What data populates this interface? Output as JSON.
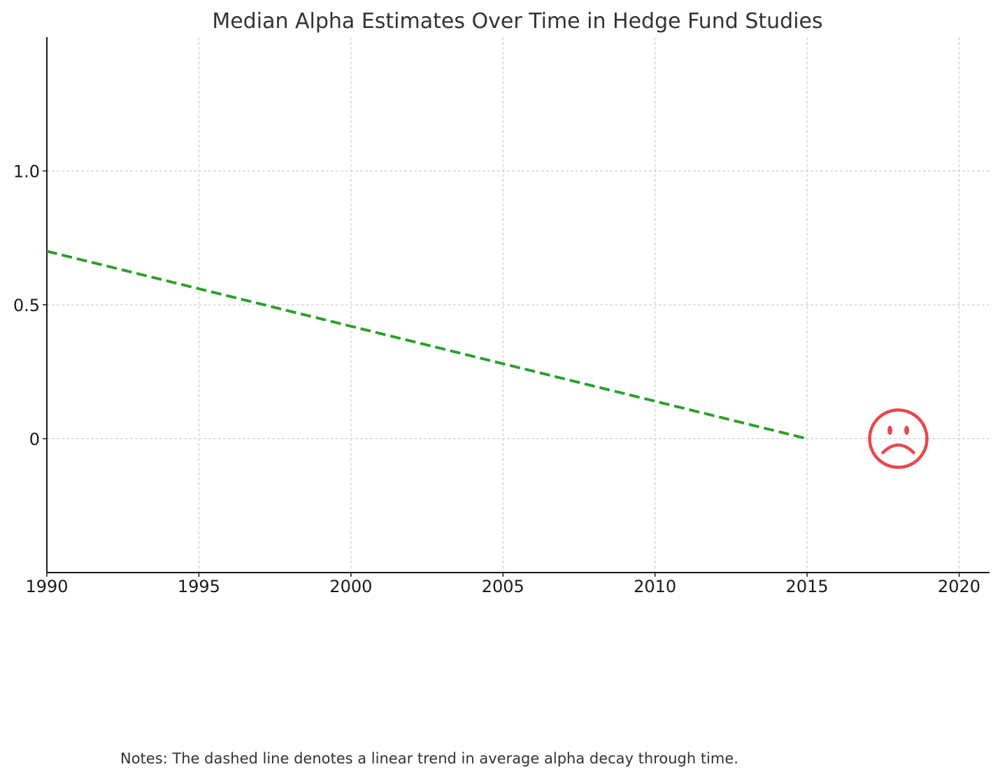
{
  "chart_data": {
    "type": "line",
    "title": "Median Alpha Estimates Over Time in Hedge Fund Studies",
    "xlabel": "",
    "ylabel": "",
    "xlim": [
      1990,
      2021
    ],
    "ylim": [
      -0.5,
      1.5
    ],
    "x_ticks": [
      1990,
      1995,
      2000,
      2005,
      2010,
      2015,
      2020
    ],
    "x_tick_labels": [
      "1990",
      "1995",
      "2000",
      "2005",
      "2010",
      "2015",
      "2020"
    ],
    "y_ticks": [
      0,
      0.5,
      1.0
    ],
    "y_tick_labels": [
      "0",
      "0.5",
      "1.0"
    ],
    "grid": true,
    "series": [
      {
        "style": "dashed",
        "color": "#2ca02c",
        "x": [
          1990,
          2015
        ],
        "y": [
          0.7,
          0.0
        ]
      }
    ],
    "annotations": [
      {
        "kind": "sad-face-icon",
        "x": 2018,
        "y": 0.0,
        "color": "#e8474f"
      }
    ],
    "notes": "Notes: The dashed line denotes a linear trend in average alpha decay through time."
  }
}
